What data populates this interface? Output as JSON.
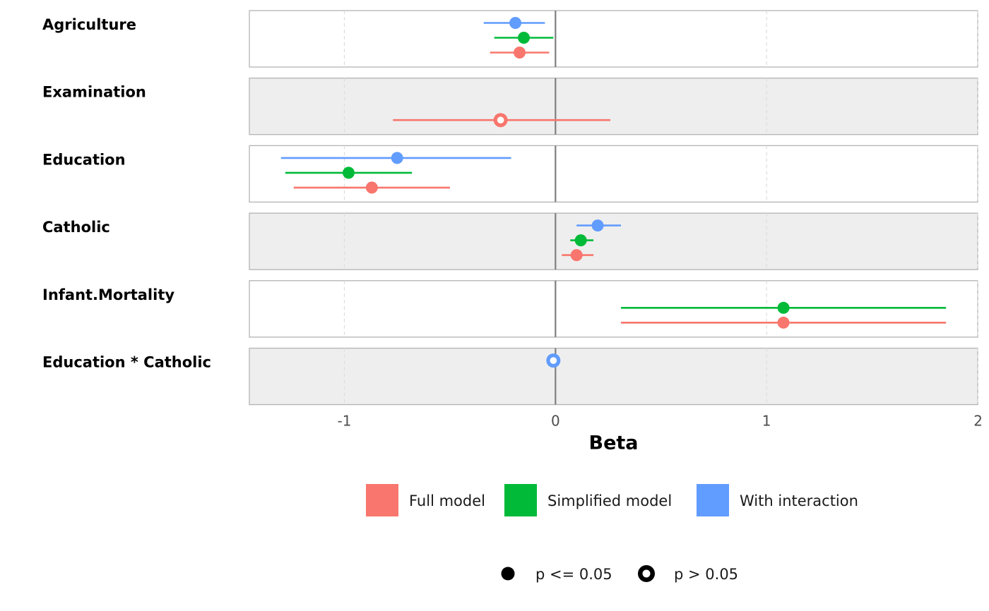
{
  "chart_data": {
    "type": "forest",
    "title": "",
    "xlabel": "Beta",
    "ylabel": "",
    "xlim": [
      -1.45,
      2.0
    ],
    "x_ticks": [
      -1,
      0,
      1,
      2
    ],
    "x_tick_labels": [
      "-1",
      "0",
      "1",
      "2"
    ],
    "reference_line": 0,
    "rows": [
      "Agriculture",
      "Examination",
      "Education",
      "Catholic",
      "Infant.Mortality",
      "Education * Catholic"
    ],
    "series": [
      {
        "name": "Full model",
        "color": "#F8766D",
        "points": [
          {
            "term": "Agriculture",
            "estimate": -0.17,
            "low": -0.31,
            "high": -0.03,
            "significant": true
          },
          {
            "term": "Examination",
            "estimate": -0.26,
            "low": -0.77,
            "high": 0.26,
            "significant": false
          },
          {
            "term": "Education",
            "estimate": -0.87,
            "low": -1.24,
            "high": -0.5,
            "significant": true
          },
          {
            "term": "Catholic",
            "estimate": 0.1,
            "low": 0.03,
            "high": 0.18,
            "significant": true
          },
          {
            "term": "Infant.Mortality",
            "estimate": 1.08,
            "low": 0.31,
            "high": 1.85,
            "significant": true
          }
        ]
      },
      {
        "name": "Simplified model",
        "color": "#00BA38",
        "points": [
          {
            "term": "Agriculture",
            "estimate": -0.15,
            "low": -0.29,
            "high": -0.01,
            "significant": true
          },
          {
            "term": "Education",
            "estimate": -0.98,
            "low": -1.28,
            "high": -0.68,
            "significant": true
          },
          {
            "term": "Catholic",
            "estimate": 0.12,
            "low": 0.07,
            "high": 0.18,
            "significant": true
          },
          {
            "term": "Infant.Mortality",
            "estimate": 1.08,
            "low": 0.31,
            "high": 1.85,
            "significant": true
          }
        ]
      },
      {
        "name": "With interaction",
        "color": "#619CFF",
        "points": [
          {
            "term": "Agriculture",
            "estimate": -0.19,
            "low": -0.34,
            "high": -0.05,
            "significant": true
          },
          {
            "term": "Education",
            "estimate": -0.75,
            "low": -1.3,
            "high": -0.21,
            "significant": true
          },
          {
            "term": "Catholic",
            "estimate": 0.2,
            "low": 0.1,
            "high": 0.31,
            "significant": true
          },
          {
            "term": "Education * Catholic",
            "estimate": -0.01,
            "low": -0.02,
            "high": 0.0,
            "significant": false
          }
        ]
      }
    ],
    "legend": {
      "models": [
        "Full model",
        "Simplified model",
        "With interaction"
      ],
      "significance": [
        {
          "label": "p <= 0.05",
          "style": "filled"
        },
        {
          "label": "p > 0.05",
          "style": "hollow"
        }
      ],
      "placement": "bottom"
    },
    "panel_colors": {
      "even": "#FFFFFF",
      "odd": "#EEEEEE",
      "border": "#B3B3B3",
      "grid": "#DDDDDD",
      "zero_line": "#7F7F7F"
    }
  }
}
